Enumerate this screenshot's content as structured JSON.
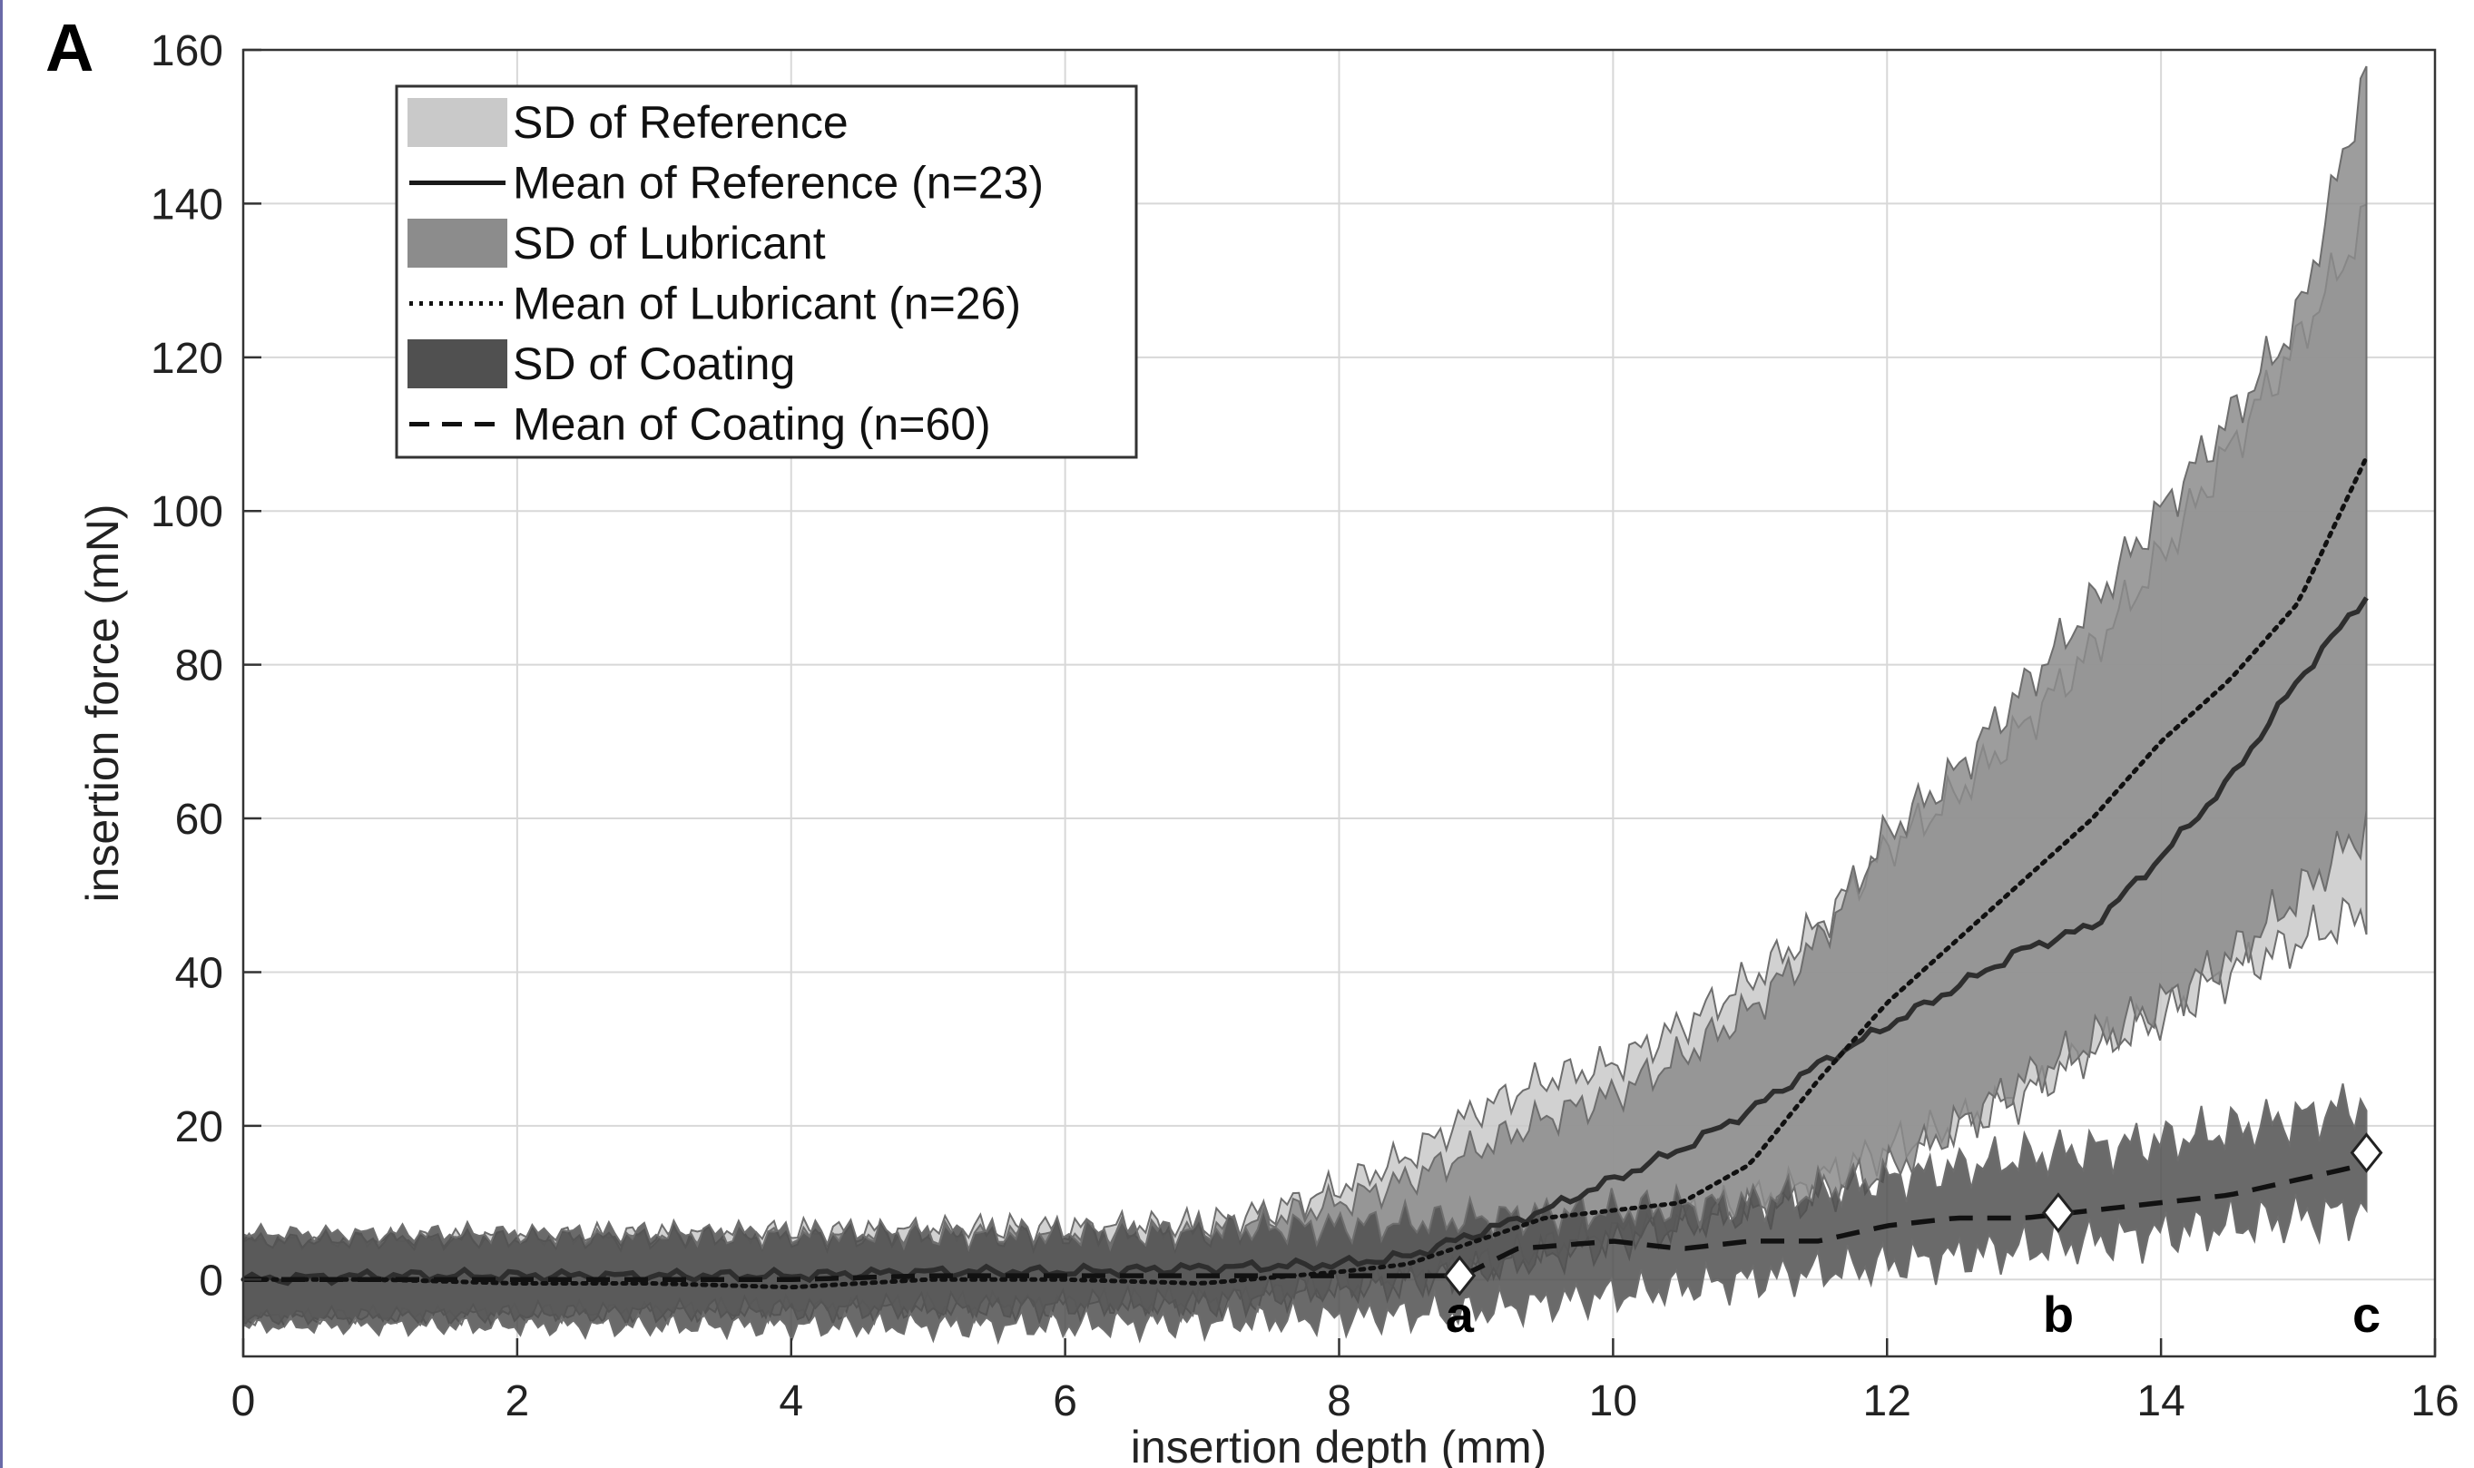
{
  "panel_label": "A",
  "chart_data": {
    "type": "line",
    "xlabel": "insertion depth (mm)",
    "ylabel": "insertion force (mN)",
    "xlim": [
      0,
      16
    ],
    "ylim": [
      -10,
      160
    ],
    "xticks": [
      0,
      2,
      4,
      6,
      8,
      10,
      12,
      14,
      16
    ],
    "yticks": [
      0,
      20,
      40,
      60,
      80,
      100,
      120,
      140,
      160
    ],
    "grid": true,
    "legend_position": "top-left",
    "legend": [
      {
        "label": "SD of Reference",
        "kind": "band",
        "color": "#c9c9c9"
      },
      {
        "label": "Mean of Reference (n=23)",
        "kind": "line",
        "style": "solid",
        "color": "#1a1a1a"
      },
      {
        "label": "SD of Lubricant",
        "kind": "band",
        "color": "#8c8c8c"
      },
      {
        "label": "Mean of Lubricant (n=26)",
        "kind": "line",
        "style": "dotted",
        "color": "#111111"
      },
      {
        "label": "SD of Coating",
        "kind": "band",
        "color": "#505050"
      },
      {
        "label": "Mean of Coating (n=60)",
        "kind": "line",
        "style": "dashed",
        "color": "#111111"
      }
    ],
    "series": [
      {
        "kind": "band",
        "color": "#c9c9c9",
        "x": [
          0,
          7,
          7.5,
          8,
          8.5,
          9,
          9.5,
          10,
          10.5,
          11,
          11.5,
          12,
          12.5,
          13,
          13.5,
          14,
          14.5,
          15,
          15.5
        ],
        "upper": [
          5,
          7,
          9,
          12,
          16,
          22,
          26,
          28,
          33,
          39,
          46,
          56,
          63,
          72,
          82,
          94,
          108,
          122,
          138
        ],
        "lower": [
          -5,
          -3,
          -2,
          -1,
          0,
          2,
          4,
          6,
          8,
          10,
          13,
          17,
          20,
          24,
          30,
          34,
          40,
          44,
          48
        ]
      },
      {
        "kind": "band",
        "color": "#8c8c8c",
        "x": [
          0,
          7,
          7.5,
          8,
          8.5,
          9,
          9.5,
          10,
          10.5,
          11,
          11.5,
          12,
          12.5,
          13,
          13.5,
          14,
          14.5,
          15,
          15.5
        ],
        "upper": [
          5,
          6,
          8,
          10,
          13,
          17,
          21,
          24,
          29,
          35,
          44,
          58,
          66,
          77,
          88,
          100,
          112,
          125,
          157
        ],
        "lower": [
          -5,
          -3,
          -2,
          -1,
          0,
          1,
          3,
          5,
          7,
          9,
          11,
          14,
          20,
          26,
          31,
          36,
          42,
          50,
          59
        ]
      },
      {
        "kind": "band",
        "color": "#505050",
        "x": [
          0,
          2,
          4,
          6,
          8,
          9,
          10,
          11,
          12,
          13,
          14,
          15,
          15.5
        ],
        "upper": [
          6,
          6,
          6,
          6,
          7,
          8,
          9,
          10,
          13,
          16,
          18,
          21,
          23
        ],
        "lower": [
          -6,
          -6,
          -6,
          -6,
          -5,
          -4,
          -2,
          0,
          2,
          4,
          6,
          8,
          9
        ]
      },
      {
        "name": "Mean of Reference (n=23)",
        "kind": "line",
        "style": "solid",
        "color": "#2e2e2e",
        "x": [
          0,
          1,
          2,
          3,
          4,
          5,
          6,
          7,
          8,
          8.5,
          9,
          9.5,
          10,
          10.5,
          11,
          11.5,
          12,
          12.5,
          13,
          13.5,
          14,
          14.5,
          15,
          15.5
        ],
        "y": [
          0,
          0.5,
          0.5,
          0.5,
          0.5,
          1,
          1,
          1.5,
          2,
          3,
          6,
          9,
          13,
          17,
          22,
          28,
          33,
          38,
          43,
          46,
          55,
          65,
          78,
          89
        ]
      },
      {
        "name": "Mean of Lubricant (n=26)",
        "kind": "line",
        "style": "dotted",
        "color": "#111111",
        "x": [
          0,
          1,
          2,
          3,
          4,
          5,
          6,
          7,
          8,
          8.5,
          9,
          9.5,
          10,
          10.5,
          11,
          11.5,
          12,
          12.5,
          13,
          13.5,
          14,
          14.5,
          15,
          15.5
        ],
        "y": [
          0,
          0,
          -0.5,
          -0.5,
          -1,
          0,
          0,
          -0.5,
          1,
          2,
          5,
          8,
          9,
          10,
          15,
          26,
          36,
          44,
          52,
          60,
          70,
          78,
          88,
          107
        ]
      },
      {
        "name": "Mean of Coating (n=60)",
        "kind": "line",
        "style": "dashed",
        "color": "#111111",
        "x": [
          0,
          1,
          2,
          3,
          4,
          5,
          6,
          7,
          8,
          8.9,
          9.3,
          10,
          10.5,
          11,
          11.5,
          12,
          12.5,
          13,
          13.5,
          14,
          14.5,
          15,
          15.5
        ],
        "y": [
          0,
          0,
          0,
          0,
          0,
          0.5,
          0.5,
          0.5,
          0.5,
          0.5,
          4,
          5,
          4,
          5,
          5,
          7,
          8,
          8,
          9,
          10,
          11,
          13,
          15
        ]
      }
    ],
    "markers": [
      {
        "label": "a",
        "x": 8.88,
        "y": 0.5
      },
      {
        "label": "b",
        "x": 13.25,
        "y": 8.7
      },
      {
        "label": "c",
        "x": 15.5,
        "y": 16.5
      }
    ]
  }
}
